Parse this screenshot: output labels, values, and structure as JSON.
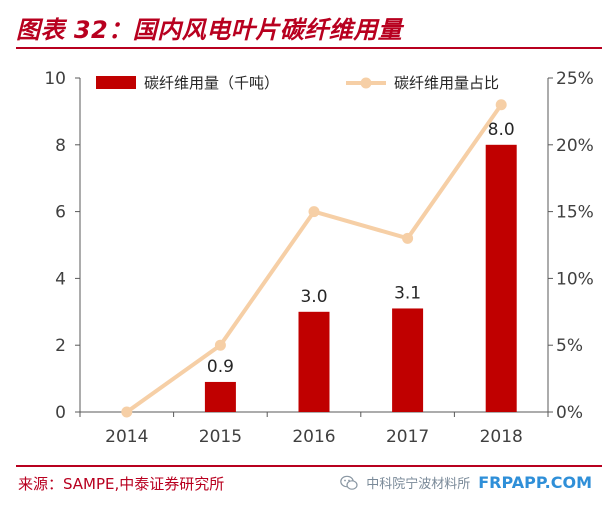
{
  "figure": {
    "title": "图表 32：国内风电叶片碳纤维用量",
    "source": "来源：SAMPE,中泰证券研究所",
    "watermark_text": "中科院宁波材料所",
    "watermark_site": "FRPAPP.COM",
    "watermark_icon": "wechat-icon"
  },
  "chart_data": {
    "type": "bar",
    "categories": [
      "2014",
      "2015",
      "2016",
      "2017",
      "2018"
    ],
    "series": [
      {
        "name": "碳纤维用量（千吨）",
        "kind": "bar",
        "axis": "left",
        "color": "#c00000",
        "values": [
          0,
          0.9,
          3.0,
          3.1,
          8.0
        ],
        "labels": [
          "",
          "0.9",
          "3.0",
          "3.1",
          "8.0"
        ]
      },
      {
        "name": "碳纤维用量占比",
        "kind": "line",
        "axis": "right",
        "color": "#f6cfa6",
        "values": [
          0,
          5,
          15,
          13,
          23
        ]
      }
    ],
    "ylim_left": [
      0,
      10
    ],
    "yticks_left": [
      "0",
      "2",
      "4",
      "6",
      "8",
      "10"
    ],
    "ylim_right": [
      0,
      25
    ],
    "yticks_right": [
      "0%",
      "5%",
      "10%",
      "15%",
      "20%",
      "25%"
    ],
    "legend": "top",
    "grid": false
  }
}
